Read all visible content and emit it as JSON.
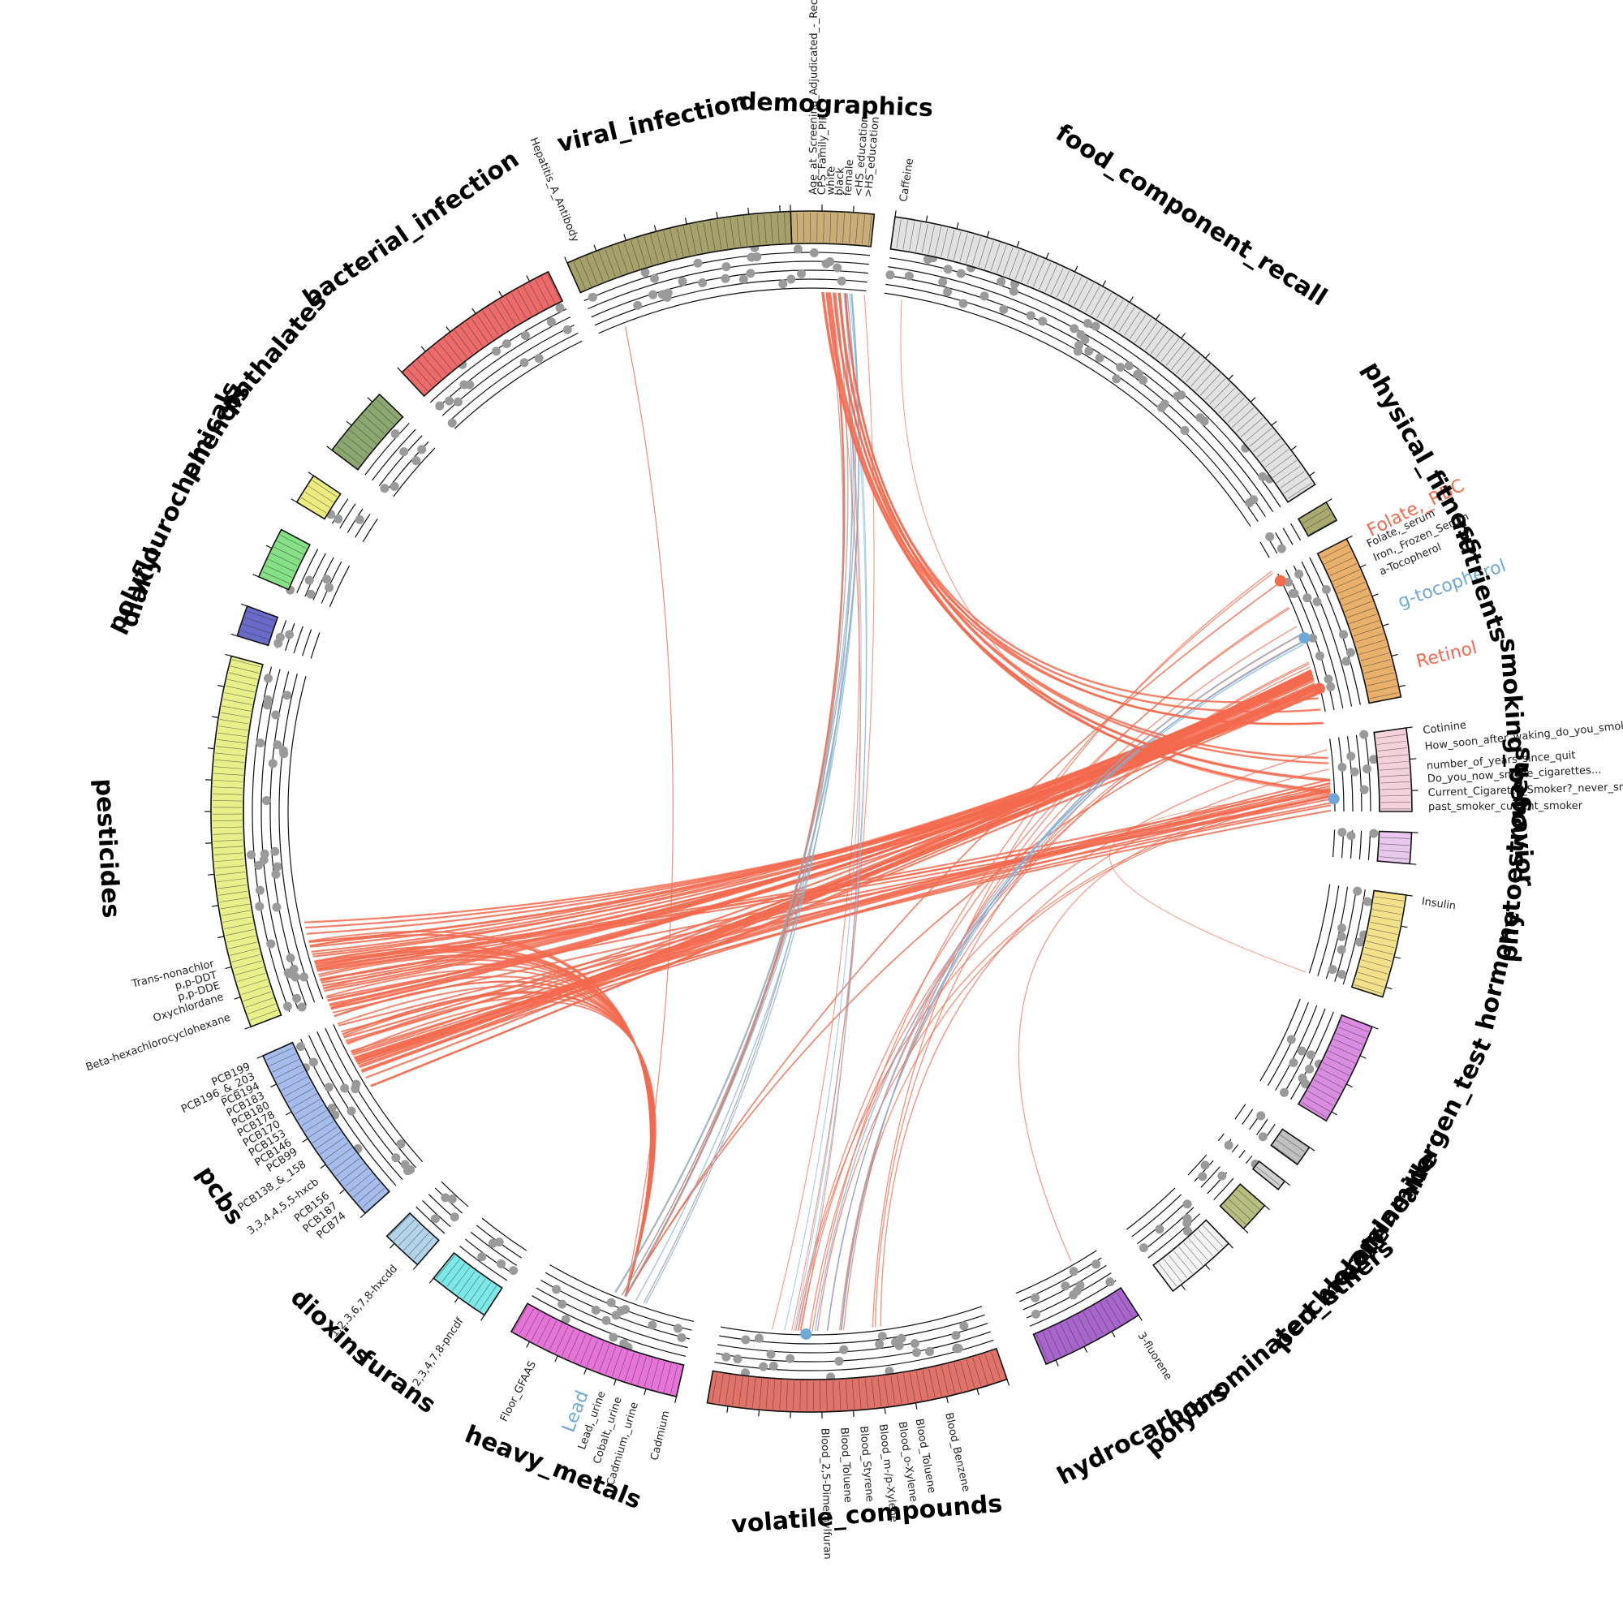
{
  "categories": [
    {
      "name": "demographics",
      "start": -2,
      "end": 6,
      "color": "#c9ae7a",
      "label": "demographics"
    },
    {
      "name": "food_component_recall",
      "start": 8,
      "end": 57,
      "color": "#e2e2e2",
      "label": "food _ component _ recall"
    },
    {
      "name": "physical_fitness",
      "start": 59,
      "end": 61,
      "color": "#a8aa6e",
      "label": "physical _ fitness"
    },
    {
      "name": "nutrients",
      "start": 63,
      "end": 79,
      "color": "#e8b06a",
      "label": "nutrients"
    },
    {
      "name": "smoking_behavior",
      "start": 82,
      "end": 90,
      "color": "#f4d2dc",
      "label": "smoking _ behavior"
    },
    {
      "name": "phytoestrogens",
      "start": 92,
      "end": 95,
      "color": "#e8c8ec",
      "label": "phytoestrogens"
    },
    {
      "name": "hormone",
      "start": 98,
      "end": 108,
      "color": "#f2e08a",
      "label": "hormone"
    },
    {
      "name": "allergen_test",
      "start": 111,
      "end": 121,
      "color": "#d98ce0",
      "label": "allergen _ test"
    },
    {
      "name": "acrylamide",
      "start": 124,
      "end": 126,
      "color": "#c0c0c0",
      "label": "acrylamide"
    },
    {
      "name": "melamine",
      "start": 128,
      "end": 129,
      "color": "#d0d0d0",
      "label": "melamine"
    },
    {
      "name": "perchlorate",
      "start": 131,
      "end": 134,
      "color": "#b8be80",
      "label": "perchlorate"
    },
    {
      "name": "polybrominated_ethers",
      "start": 136,
      "end": 143,
      "color": "#f4f4f4",
      "label": "polybrominated _ ethers"
    },
    {
      "name": "hydrocarbons",
      "start": 147,
      "end": 157,
      "color": "#a866cc",
      "label": "hydrocarbons"
    },
    {
      "name": "volatile_compounds",
      "start": 161,
      "end": 190,
      "color": "#e0726a",
      "label": "volatile _ compounds"
    },
    {
      "name": "heavy_metals",
      "start": 193,
      "end": 210,
      "color": "#e674d8",
      "label": "heavy _ metals"
    },
    {
      "name": "furans",
      "start": 213,
      "end": 219,
      "color": "#7ce8e8",
      "label": "furans"
    },
    {
      "name": "dioxins",
      "start": 221,
      "end": 225,
      "color": "#b4d4ec",
      "label": "dioxins"
    },
    {
      "name": "pcbs",
      "start": 228,
      "end": 246,
      "color": "#a6bcec",
      "label": "pcbs"
    },
    {
      "name": "pesticides",
      "start": 249,
      "end": 285,
      "color": "#e8f08a",
      "label": "pesticides"
    },
    {
      "name": "diakyl",
      "start": 287,
      "end": 290,
      "color": "#6a6ac8",
      "label": "diakyl"
    },
    {
      "name": "polyflourochemicals",
      "start": 293,
      "end": 298,
      "color": "#86e086",
      "label": "polyflourochemicals"
    },
    {
      "name": "phenols",
      "start": 301,
      "end": 304,
      "color": "#ecec80",
      "label": "phenols"
    },
    {
      "name": "phthalates",
      "start": 307,
      "end": 314,
      "color": "#8ca870",
      "label": "phthalates"
    },
    {
      "name": "bacterial_infection",
      "start": 317,
      "end": 334,
      "color": "#ec6a6a",
      "label": "bacterial _ infection"
    },
    {
      "name": "viral_infection",
      "start": 336,
      "end": 358,
      "color": "#a6a06a",
      "label": "viral _ infection"
    }
  ],
  "variable_labels": [
    {
      "text": "Age _ at _ Screening _ Adjudicated _ - _ Recode",
      "angle": 0.2
    },
    {
      "text": "CPS _ Family _ PIR",
      "angle": 1.0
    },
    {
      "text": "white",
      "angle": 1.8
    },
    {
      "text": "black",
      "angle": 2.6
    },
    {
      "text": "female",
      "angle": 3.4
    },
    {
      "text": "<HS _ education",
      "angle": 4.4
    },
    {
      "text": ">HS _ education",
      "angle": 5.3
    },
    {
      "text": "Caffeine",
      "angle": 8.6
    },
    {
      "text": "Folate, _ serum",
      "angle": 64.4
    },
    {
      "text": "Iron, _ Frozen _ Serum",
      "angle": 65.8
    },
    {
      "text": "a-Tocopherol",
      "angle": 67.2
    },
    {
      "text": "Cotinine",
      "angle": 82.5
    },
    {
      "text": "How _ soon _ after _ waking _ do _ you _ smoke",
      "angle": 84.0
    },
    {
      "text": "number _ of _ years _ since _ quit",
      "angle": 85.8
    },
    {
      "text": "Do _ you _ now _ smoke _ cigarettes...",
      "angle": 87.0
    },
    {
      "text": "Current _ Cigarette _ Smoker? _ never _ smoker",
      "angle": 88.3
    },
    {
      "text": "past _ smoker _ current _ smoker",
      "angle": 89.6
    },
    {
      "text": "Insulin",
      "angle": 98.4
    },
    {
      "text": "3-fluorene",
      "angle": 147.8
    },
    {
      "text": "Blood _ Benzene",
      "angle": 167.2
    },
    {
      "text": "Blood _ Toluene",
      "angle": 170.0
    },
    {
      "text": "Blood _ o-Xylene",
      "angle": 171.6
    },
    {
      "text": "Blood _ m-/p-Xylene",
      "angle": 173.4
    },
    {
      "text": "Blood _ Styrene",
      "angle": 175.2
    },
    {
      "text": "Blood _ Toluene",
      "angle": 177.0
    },
    {
      "text": "Blood _ 2,5-Dimethylfuran",
      "angle": 178.8
    },
    {
      "text": "Cadmium",
      "angle": 193.6
    },
    {
      "text": "Cadmium, _ urine",
      "angle": 196.6
    },
    {
      "text": "Cobalt, _ urine",
      "angle": 198.2
    },
    {
      "text": "Lead, _ urine",
      "angle": 199.8
    },
    {
      "text": "Floor _ GFAAS",
      "angle": 206.8
    },
    {
      "text": "2,3,4,7,8-pncdf",
      "angle": 214.6
    },
    {
      "text": "1,2,3,6,7,8-hxcdd",
      "angle": 222.4
    },
    {
      "text": "PCB74",
      "angle": 229.2
    },
    {
      "text": "PCB187",
      "angle": 230.4
    },
    {
      "text": "PCB156",
      "angle": 231.6
    },
    {
      "text": "3,3,4,4,5,5-hxcb",
      "angle": 233.2
    },
    {
      "text": "PCB138 _ & _ 158",
      "angle": 235.2
    },
    {
      "text": "PCB99",
      "angle": 236.6
    },
    {
      "text": "PCB146",
      "angle": 237.6
    },
    {
      "text": "PCB153",
      "angle": 238.6
    },
    {
      "text": "PCB170",
      "angle": 239.6
    },
    {
      "text": "PCB178",
      "angle": 240.6
    },
    {
      "text": "PCB180",
      "angle": 241.6
    },
    {
      "text": "PCB183",
      "angle": 242.6
    },
    {
      "text": "PCB194",
      "angle": 243.6
    },
    {
      "text": "PCB196 _ & _ 203",
      "angle": 244.6
    },
    {
      "text": "PCB199",
      "angle": 245.6
    },
    {
      "text": "Beta-hexachlorocyclohexane",
      "angle": 250.5
    },
    {
      "text": "Oxychlordane",
      "angle": 252.5
    },
    {
      "text": "p,p-DDE",
      "angle": 253.6
    },
    {
      "text": "p,p-DDT",
      "angle": 254.6
    },
    {
      "text": "Trans-nonachlor",
      "angle": 255.7
    },
    {
      "text": "Hepatitis _ A _ Antibody",
      "angle": 337.5
    }
  ],
  "highlight_labels": [
    {
      "text": "Folate, _ RBC",
      "angle": 63.4,
      "color": "#f36a4f",
      "size": 22
    },
    {
      "text": "g-tocopherol",
      "angle": 70.5,
      "color": "#6fa8d6",
      "size": 22
    },
    {
      "text": "Retinol",
      "angle": 76.2,
      "color": "#f36a4f",
      "size": 22
    },
    {
      "text": "Lead",
      "angle": 201.4,
      "color": "#6fa8d6",
      "size": 22
    }
  ],
  "highlight_points": [
    {
      "angle": 63.8,
      "color": "#f36a4f"
    },
    {
      "angle": 70.6,
      "color": "#6fa8d6"
    },
    {
      "angle": 76.4,
      "color": "#f36a4f"
    },
    {
      "angle": 88.6,
      "color": "#6fa8d6"
    },
    {
      "angle": 180.6,
      "color": "#6fa8d6"
    }
  ],
  "link_colors": {
    "positive": "#f36a4f",
    "negative": "#7fb4da",
    "neutral": "#a89898"
  }
}
